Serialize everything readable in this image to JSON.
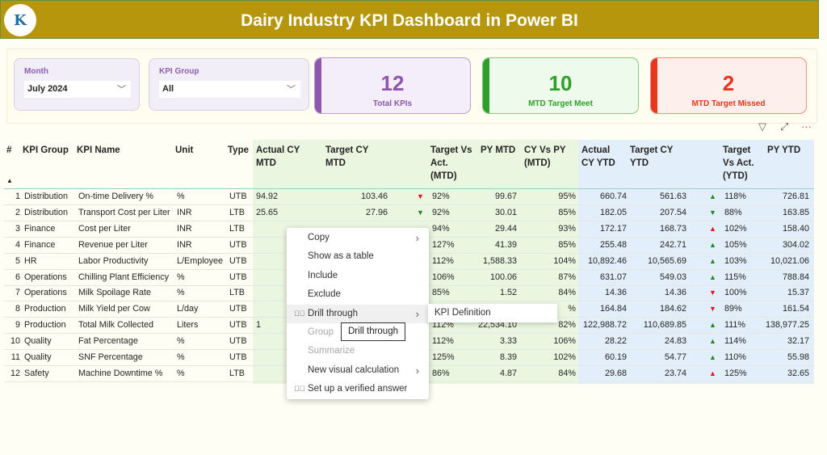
{
  "header": {
    "title": "Dairy Industry KPI Dashboard in Power BI",
    "logo_text": "K"
  },
  "slicers": [
    {
      "label": "Month",
      "value": "July 2024"
    },
    {
      "label": "KPI Group",
      "value": "All"
    }
  ],
  "cards": [
    {
      "value": "12",
      "caption": "Total KPIs",
      "color": "#8E56AE",
      "bg": "#F3EEF9"
    },
    {
      "value": "10",
      "caption": "MTD Target Meet",
      "color": "#2EA02A",
      "bg": "#EEFAEC"
    },
    {
      "value": "2",
      "caption": "MTD Target Missed",
      "color": "#E8351C",
      "bg": "#FDF0EC"
    }
  ],
  "visual_icons": {
    "filter": "▽",
    "focus": "⤢",
    "more": "···"
  },
  "table": {
    "columns": [
      "#",
      "KPI Group",
      "KPI Name",
      "Unit",
      "Type",
      "Actual CY MTD",
      "Target CY MTD",
      "Target Vs Act. (MTD)",
      "PY MTD",
      "CY Vs PY (MTD)",
      "Actual CY YTD",
      "Target CY YTD",
      "Target Vs Act. (YTD)",
      "PY YTD"
    ],
    "sort_indicator": "▲",
    "rows": [
      {
        "n": "1",
        "group": "Distribution",
        "name": "On-time Delivery %",
        "unit": "%",
        "type": "UTB",
        "act_mtd": "94.92",
        "tgt_mtd": "103.46",
        "mtd_arrow": "down-red",
        "tva_mtd": "92%",
        "py_mtd": "99.67",
        "cyvpy": "95%",
        "act_ytd": "660.74",
        "tgt_ytd": "561.63",
        "ytd_arrow": "up-green",
        "tva_ytd": "118%",
        "py_ytd": "726.81"
      },
      {
        "n": "2",
        "group": "Distribution",
        "name": "Transport Cost per Liter",
        "unit": "INR",
        "type": "LTB",
        "act_mtd": "25.65",
        "tgt_mtd": "27.96",
        "mtd_arrow": "down-green",
        "tva_mtd": "92%",
        "py_mtd": "30.01",
        "cyvpy": "85%",
        "act_ytd": "182.05",
        "tgt_ytd": "207.54",
        "ytd_arrow": "down-green",
        "tva_ytd": "88%",
        "py_ytd": "163.85"
      },
      {
        "n": "3",
        "group": "Finance",
        "name": "Cost per Liter",
        "unit": "INR",
        "type": "LTB",
        "act_mtd": "",
        "tgt_mtd": "",
        "mtd_arrow": "",
        "tva_mtd": "94%",
        "py_mtd": "29.44",
        "cyvpy": "93%",
        "act_ytd": "172.17",
        "tgt_ytd": "168.73",
        "ytd_arrow": "up-red",
        "tva_ytd": "102%",
        "py_ytd": "158.40"
      },
      {
        "n": "4",
        "group": "Finance",
        "name": "Revenue per Liter",
        "unit": "INR",
        "type": "UTB",
        "act_mtd": "",
        "tgt_mtd": "",
        "mtd_arrow": "",
        "tva_mtd": "127%",
        "py_mtd": "41.39",
        "cyvpy": "85%",
        "act_ytd": "255.48",
        "tgt_ytd": "242.71",
        "ytd_arrow": "up-green",
        "tva_ytd": "105%",
        "py_ytd": "304.02"
      },
      {
        "n": "5",
        "group": "HR",
        "name": "Labor Productivity",
        "unit": "L/Employee",
        "type": "UTB",
        "act_mtd": "",
        "tgt_mtd": "",
        "mtd_arrow": "",
        "tva_mtd": "112%",
        "py_mtd": "1,588.33",
        "cyvpy": "104%",
        "act_ytd": "10,892.46",
        "tgt_ytd": "10,565.69",
        "ytd_arrow": "up-green",
        "tva_ytd": "103%",
        "py_ytd": "10,021.06"
      },
      {
        "n": "6",
        "group": "Operations",
        "name": "Chilling Plant Efficiency",
        "unit": "%",
        "type": "UTB",
        "act_mtd": "",
        "tgt_mtd": "",
        "mtd_arrow": "",
        "tva_mtd": "106%",
        "py_mtd": "100.06",
        "cyvpy": "87%",
        "act_ytd": "631.07",
        "tgt_ytd": "549.03",
        "ytd_arrow": "up-green",
        "tva_ytd": "115%",
        "py_ytd": "788.84"
      },
      {
        "n": "7",
        "group": "Operations",
        "name": "Milk Spoilage Rate",
        "unit": "%",
        "type": "LTB",
        "act_mtd": "",
        "tgt_mtd": "",
        "mtd_arrow": "",
        "tva_mtd": "85%",
        "py_mtd": "1.52",
        "cyvpy": "84%",
        "act_ytd": "14.36",
        "tgt_ytd": "14.36",
        "ytd_arrow": "down-red",
        "tva_ytd": "100%",
        "py_ytd": "15.37"
      },
      {
        "n": "8",
        "group": "Production",
        "name": "Milk Yield per Cow",
        "unit": "L/day",
        "type": "UTB",
        "act_mtd": "",
        "tgt_mtd": "",
        "mtd_arrow": "",
        "tva_mtd": "",
        "py_mtd": "",
        "cyvpy": "%",
        "act_ytd": "164.84",
        "tgt_ytd": "184.62",
        "ytd_arrow": "down-red",
        "tva_ytd": "89%",
        "py_ytd": "161.54"
      },
      {
        "n": "9",
        "group": "Production",
        "name": "Total Milk Collected",
        "unit": "Liters",
        "type": "UTB",
        "act_mtd": "1",
        "tgt_mtd": "",
        "mtd_arrow": "",
        "tva_mtd": "112%",
        "py_mtd": "22,534.10",
        "cyvpy": "82%",
        "act_ytd": "122,988.72",
        "tgt_ytd": "110,689.85",
        "ytd_arrow": "up-green",
        "tva_ytd": "111%",
        "py_ytd": "138,977.25"
      },
      {
        "n": "10",
        "group": "Quality",
        "name": "Fat Percentage",
        "unit": "%",
        "type": "UTB",
        "act_mtd": "",
        "tgt_mtd": "",
        "mtd_arrow": "",
        "tva_mtd": "112%",
        "py_mtd": "3.33",
        "cyvpy": "106%",
        "act_ytd": "28.22",
        "tgt_ytd": "24.83",
        "ytd_arrow": "up-green",
        "tva_ytd": "114%",
        "py_ytd": "32.17"
      },
      {
        "n": "11",
        "group": "Quality",
        "name": "SNF Percentage",
        "unit": "%",
        "type": "UTB",
        "act_mtd": "",
        "tgt_mtd": "",
        "mtd_arrow": "",
        "tva_mtd": "125%",
        "py_mtd": "8.39",
        "cyvpy": "102%",
        "act_ytd": "60.19",
        "tgt_ytd": "54.77",
        "ytd_arrow": "up-green",
        "tva_ytd": "110%",
        "py_ytd": "55.98"
      },
      {
        "n": "12",
        "group": "Safety",
        "name": "Machine Downtime %",
        "unit": "%",
        "type": "LTB",
        "act_mtd": "",
        "tgt_mtd": "",
        "mtd_arrow": "",
        "tva_mtd": "86%",
        "py_mtd": "4.87",
        "cyvpy": "84%",
        "act_ytd": "29.68",
        "tgt_ytd": "23.74",
        "ytd_arrow": "up-red",
        "tva_ytd": "125%",
        "py_ytd": "32.65"
      }
    ]
  },
  "context_menu": {
    "items": [
      {
        "label": "Copy",
        "submenu": true,
        "disabled": false
      },
      {
        "label": "Show as a table",
        "submenu": false,
        "disabled": false
      },
      {
        "label": "Include",
        "submenu": false,
        "disabled": false
      },
      {
        "label": "Exclude",
        "submenu": false,
        "disabled": false
      },
      {
        "label": "Drill through",
        "submenu": true,
        "disabled": false,
        "icon": "drill-through-icon",
        "highlighted": true
      },
      {
        "label": "Group",
        "submenu": false,
        "disabled": true
      },
      {
        "label": "Summarize",
        "submenu": false,
        "disabled": true
      },
      {
        "label": "New visual calculation",
        "submenu": true,
        "disabled": false
      },
      {
        "label": "Set up a verified answer",
        "submenu": false,
        "disabled": false,
        "icon": "check-circle-icon"
      }
    ],
    "submenu_item": "KPI Definition",
    "tooltip": "Drill through"
  },
  "colors": {
    "header": "#B5960C",
    "arrow_green": "#1E8A1E",
    "arrow_red": "#E0161B"
  }
}
